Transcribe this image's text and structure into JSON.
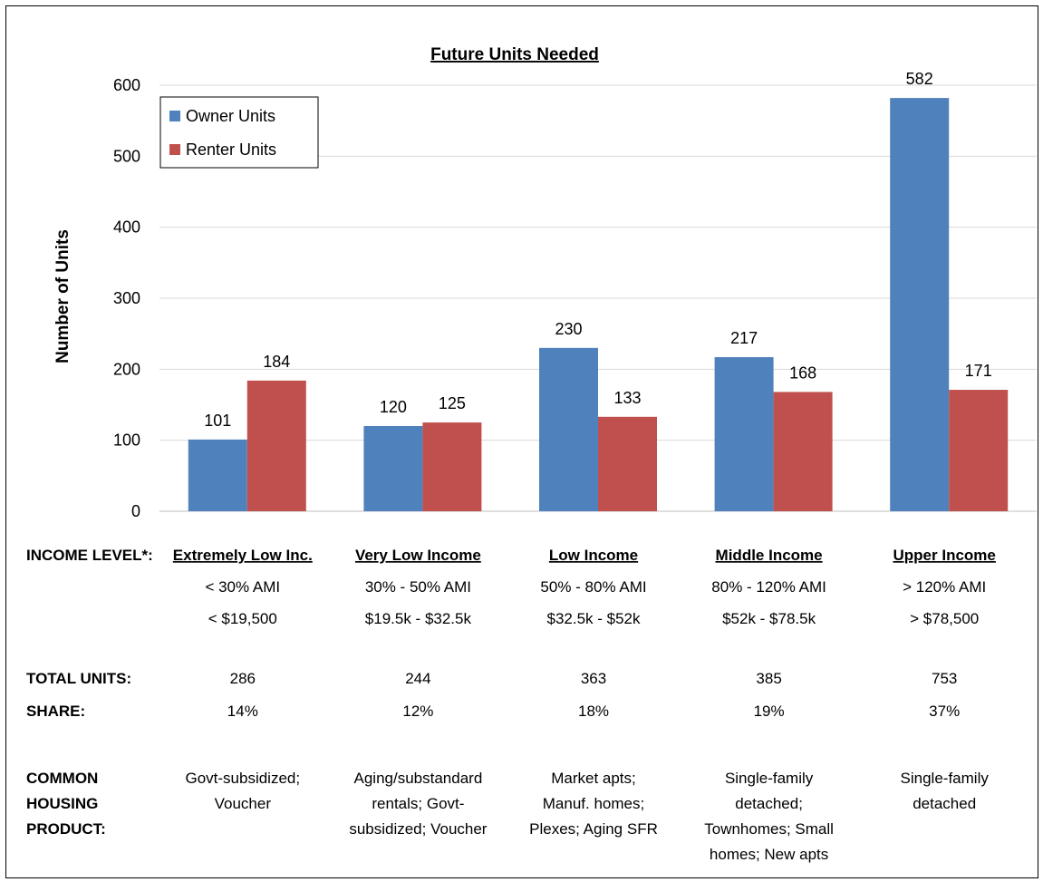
{
  "chart_data": {
    "type": "bar",
    "title": "Future Units Needed",
    "ylabel": "Number of Units",
    "xlabel": "",
    "ylim": [
      0,
      600
    ],
    "yticks": [
      0,
      100,
      200,
      300,
      400,
      500,
      600
    ],
    "grid": true,
    "legend_position": "top-left",
    "categories": [
      "Extremely Low Inc.",
      "Very Low Income",
      "Low Income",
      "Middle Income",
      "Upper Income"
    ],
    "series": [
      {
        "name": "Owner Units",
        "color": "#4F81BD",
        "values": [
          101,
          120,
          230,
          217,
          582
        ]
      },
      {
        "name": "Renter Units",
        "color": "#C0504D",
        "values": [
          184,
          125,
          133,
          168,
          171
        ]
      }
    ]
  },
  "table": {
    "income_label": "INCOME LEVEL*:",
    "levels": [
      "Extremely Low Inc.",
      "Very Low Income",
      "Low Income",
      "Middle Income",
      "Upper Income"
    ],
    "ami": [
      "< 30% AMI",
      "30% - 50% AMI",
      "50% - 80% AMI",
      "80% - 120% AMI",
      "> 120% AMI"
    ],
    "income_ranges": [
      "< $19,500",
      "$19.5k - $32.5k",
      "$32.5k - $52k",
      "$52k - $78.5k",
      "> $78,500"
    ],
    "total_label": "TOTAL UNITS:",
    "totals": [
      "286",
      "244",
      "363",
      "385",
      "753"
    ],
    "share_label": "SHARE:",
    "shares": [
      "14%",
      "12%",
      "18%",
      "19%",
      "37%"
    ],
    "product_label": [
      "COMMON",
      "HOUSING",
      "PRODUCT:"
    ],
    "products": [
      [
        "Govt-subsidized;",
        "Voucher"
      ],
      [
        "Aging/substandard",
        "rentals; Govt-",
        "subsidized; Voucher"
      ],
      [
        "Market apts;",
        "Manuf. homes;",
        "Plexes; Aging SFR"
      ],
      [
        "Single-family",
        "detached;",
        "Townhomes; Small",
        "homes; New apts"
      ],
      [
        "Single-family",
        "detached"
      ]
    ]
  }
}
